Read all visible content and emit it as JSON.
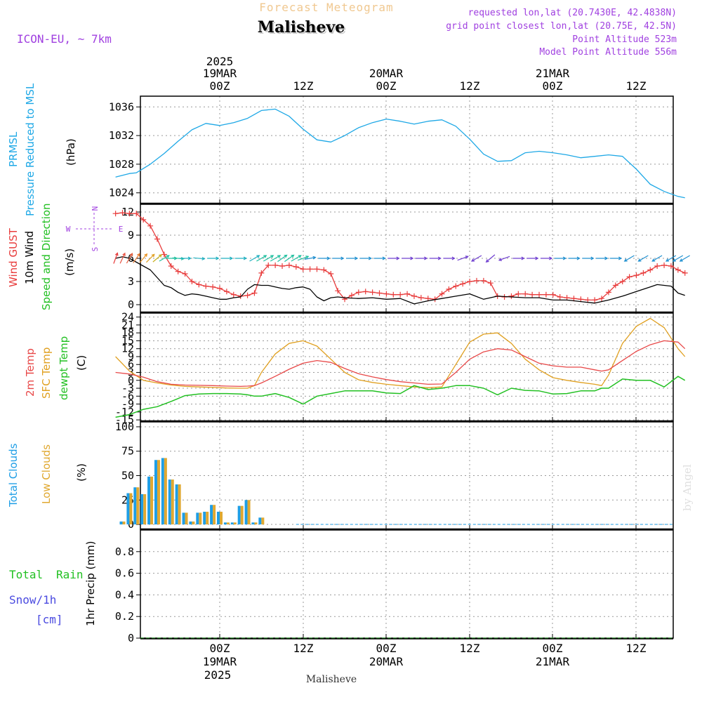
{
  "header": {
    "forecast_title": "Forecast Meteogram",
    "location": "Malisheve",
    "model": "ICON-EU, ~ 7km",
    "requested": "requested lon,lat (20.7430E, 42.4838N)",
    "grid_point": "grid point closest lon,lat (20.75E, 42.5N)",
    "point_altitude": "Point Altitude 523m",
    "model_altitude": "Model Point Altitude 556m",
    "credit": "by Angel"
  },
  "time_axis": {
    "year": "2025",
    "date_labels": [
      "19MAR",
      "20MAR",
      "21MAR"
    ],
    "tick_labels": [
      "00Z",
      "12Z",
      "00Z",
      "12Z",
      "00Z",
      "12Z"
    ],
    "footer_location": "Malisheve"
  },
  "colors": {
    "pressure": "#1ea8e6",
    "gust": "#e83c3c",
    "wind": "#000000",
    "t2m": "#e84848",
    "sfc": "#e0a020",
    "dewpt": "#22c022",
    "total_clouds": "#1e9ee6",
    "low_clouds": "#e0a830",
    "rain": "#22c022",
    "snow": "#4a4ae0",
    "purple": "#a040e0"
  },
  "panel_labels": {
    "pressure": [
      "PRMSL",
      "Pressure Reduced to MSL",
      "(hPa)"
    ],
    "wind": [
      "Wind GUST",
      "10m Wind",
      "Speed and Direction",
      "(m/s)"
    ],
    "compass": {
      "n": "N",
      "s": "S",
      "w": "W",
      "e": "E"
    },
    "temp": [
      "2m Temp",
      "SFC Temp",
      "dewpt Temp",
      "(C)"
    ],
    "clouds": [
      "Total Clouds",
      "Low Clouds",
      "(%)"
    ],
    "precip": [
      "Total",
      "Rain",
      "Snow/1h",
      "[cm]",
      "1hr Precip (mm)"
    ]
  },
  "chart_data": [
    {
      "type": "line",
      "name": "pressure",
      "ylim": [
        1022.5,
        1037.5
      ],
      "yticks": [
        1024,
        1028,
        1032,
        1036
      ],
      "x_hours": [
        -15,
        -13,
        -12,
        -10,
        -8,
        -6,
        -4,
        -2,
        0,
        2,
        4,
        6,
        8,
        10,
        12,
        14,
        16,
        18,
        20,
        22,
        24,
        26,
        28,
        30,
        32,
        34,
        36,
        38,
        40,
        42,
        44,
        46,
        48,
        50,
        52,
        54,
        56,
        58,
        60,
        62,
        64,
        66,
        67
      ],
      "series": [
        {
          "values": [
            1026.2,
            1026.7,
            1026.8,
            1028,
            1029.5,
            1031.2,
            1032.8,
            1033.7,
            1033.4,
            1033.8,
            1034.4,
            1035.5,
            1035.7,
            1034.7,
            1032.9,
            1031.4,
            1031.1,
            1032,
            1033.1,
            1033.8,
            1034.3,
            1034,
            1033.6,
            1034,
            1034.2,
            1033.3,
            1031.5,
            1029.4,
            1028.4,
            1028.5,
            1029.6,
            1029.8,
            1029.6,
            1029.3,
            1028.9,
            1029.1,
            1029.3,
            1029.1,
            1027.3,
            1025.2,
            1024.2,
            1023.5,
            1023.3
          ]
        }
      ]
    },
    {
      "type": "line",
      "name": "wind",
      "ylim": [
        -1,
        13
      ],
      "yticks": [
        0,
        3,
        6,
        9,
        12
      ],
      "gust_x": [
        -15,
        -14,
        -13,
        -12,
        -11,
        -10,
        -9,
        -8,
        -7,
        -6,
        -5,
        -4,
        -3,
        -2,
        -1,
        0,
        1,
        2,
        3,
        4,
        5,
        6,
        7,
        8,
        9,
        10,
        11,
        12,
        13,
        14,
        15,
        16,
        17,
        18,
        19,
        20,
        21,
        22,
        23,
        24,
        25,
        26,
        27,
        28,
        29,
        30,
        31,
        32,
        33,
        34,
        35,
        36,
        37,
        38,
        39,
        40,
        41,
        42,
        43,
        44,
        45,
        46,
        47,
        48,
        49,
        50,
        51,
        52,
        53,
        54,
        55,
        56,
        57,
        58,
        59,
        60,
        61,
        62,
        63,
        64,
        65,
        66,
        67
      ],
      "series": [
        {
          "name": "Wind GUST",
          "values": [
            11.8,
            11.9,
            11.8,
            11.8,
            11.0,
            10.2,
            8.5,
            6.5,
            5.0,
            4.3,
            4.0,
            3.0,
            2.6,
            2.4,
            2.3,
            2.1,
            1.7,
            1.3,
            1.1,
            1.2,
            1.5,
            4.1,
            5.1,
            5.1,
            5.0,
            5.1,
            4.9,
            4.6,
            4.6,
            4.6,
            4.5,
            4.0,
            1.8,
            0.7,
            1.2,
            1.6,
            1.7,
            1.6,
            1.5,
            1.4,
            1.3,
            1.3,
            1.4,
            1.1,
            0.9,
            0.8,
            0.7,
            1.4,
            2.0,
            2.4,
            2.7,
            3.0,
            3.1,
            3.1,
            2.8,
            1.1,
            1.0,
            1.1,
            1.4,
            1.4,
            1.3,
            1.3,
            1.3,
            1.3,
            1.0,
            0.9,
            0.8,
            0.7,
            0.6,
            0.6,
            0.8,
            1.6,
            2.5,
            3.0,
            3.6,
            3.8,
            4.1,
            4.5,
            5.0,
            5.1,
            5.0,
            4.5,
            4.1
          ]
        },
        {
          "name": "10m Wind",
          "x": [
            -15,
            -14,
            -13,
            -12,
            -11,
            -10,
            -9,
            -8,
            -7,
            -6,
            -5,
            -4,
            -3,
            -2,
            -1,
            0,
            1,
            2,
            3,
            4,
            5,
            6,
            7,
            8,
            9,
            10,
            11,
            12,
            13,
            14,
            15,
            16,
            17,
            18,
            20,
            22,
            24,
            26,
            28,
            30,
            32,
            34,
            36,
            38,
            40,
            42,
            44,
            46,
            48,
            50,
            52,
            54,
            56,
            58,
            60,
            61,
            62,
            63,
            64,
            65,
            66,
            67
          ],
          "values": [
            6.0,
            6.2,
            6.0,
            5.5,
            5.0,
            4.5,
            3.5,
            2.5,
            2.2,
            1.6,
            1.2,
            1.4,
            1.3,
            1.1,
            0.9,
            0.7,
            0.7,
            0.9,
            1.0,
            2.0,
            2.6,
            2.5,
            2.5,
            2.3,
            2.1,
            2.0,
            2.2,
            2.3,
            2.0,
            1.0,
            0.5,
            0.9,
            1.0,
            0.9,
            0.8,
            0.9,
            0.7,
            0.8,
            0.1,
            0.5,
            0.8,
            1.1,
            1.4,
            0.7,
            1.1,
            1.0,
            0.9,
            0.9,
            0.6,
            0.6,
            0.4,
            0.2,
            0.6,
            1.1,
            1.7,
            2.0,
            2.3,
            2.6,
            2.5,
            2.4,
            1.5,
            1.2
          ]
        }
      ]
    },
    {
      "type": "line",
      "name": "temperature",
      "ylim": [
        -15.5,
        25.5
      ],
      "yticks": [
        -15,
        -12,
        -9,
        -6,
        -3,
        0,
        3,
        6,
        9,
        12,
        15,
        18,
        21,
        24
      ],
      "x": [
        -15,
        -13,
        -11,
        -9,
        -7,
        -5,
        -3,
        -1,
        1,
        3,
        4,
        5,
        6,
        8,
        10,
        12,
        14,
        16,
        18,
        20,
        22,
        24,
        26,
        28,
        30,
        32,
        34,
        36,
        38,
        40,
        42,
        44,
        46,
        48,
        50,
        52,
        54,
        55,
        56,
        58,
        60,
        62,
        64,
        66,
        67
      ],
      "series": [
        {
          "name": "2m Temp",
          "values": [
            3.0,
            2.4,
            1.2,
            -0.5,
            -1.5,
            -1.8,
            -1.9,
            -2.0,
            -2.2,
            -2.3,
            -2.2,
            -2.0,
            -1.0,
            1.5,
            4.2,
            6.5,
            7.5,
            6.8,
            4.5,
            2.5,
            1.3,
            0.3,
            -0.5,
            -1.0,
            -1.5,
            -1.4,
            3.0,
            8.0,
            10.8,
            12.0,
            11.5,
            9.0,
            6.5,
            5.5,
            5.0,
            5.0,
            4.0,
            3.5,
            4.0,
            7.5,
            11.0,
            13.5,
            15.0,
            14.5,
            12.0
          ]
        },
        {
          "name": "SFC Temp",
          "values": [
            9.0,
            3.5,
            0.0,
            -1.0,
            -1.8,
            -2.3,
            -2.5,
            -2.7,
            -2.9,
            -3.0,
            -3.0,
            -2.0,
            3.0,
            10.0,
            14.0,
            15.0,
            13.0,
            8.0,
            3.0,
            0.2,
            -0.8,
            -1.5,
            -2.0,
            -2.5,
            -2.8,
            -2.5,
            6.0,
            14.5,
            17.5,
            18.0,
            14.0,
            8.0,
            4.0,
            1.0,
            0.0,
            -0.8,
            -1.5,
            -2.0,
            2.0,
            14.0,
            20.5,
            23.5,
            20.0,
            12.0,
            9.0
          ]
        },
        {
          "name": "dewpt Temp",
          "values": [
            -14.0,
            -13.0,
            -11.0,
            -10.0,
            -8.0,
            -5.8,
            -5.2,
            -5.0,
            -5.0,
            -5.2,
            -5.5,
            -6.0,
            -6.0,
            -5.0,
            -6.5,
            -9.0,
            -6.0,
            -5.0,
            -4.0,
            -4.0,
            -4.0,
            -4.8,
            -5.0,
            -2.0,
            -3.5,
            -3.0,
            -2.0,
            -2.0,
            -3.0,
            -5.5,
            -3.0,
            -3.8,
            -4.0,
            -5.2,
            -5.0,
            -4.0,
            -4.0,
            -3.0,
            -3.0,
            0.5,
            0.0,
            0.0,
            -2.5,
            1.5,
            0.0
          ]
        }
      ]
    },
    {
      "type": "bar",
      "name": "clouds",
      "ylim": [
        -5,
        105
      ],
      "yticks": [
        0,
        25,
        50,
        75,
        100
      ],
      "x": [
        -14,
        -13,
        -12,
        -11,
        -10,
        -9,
        -8,
        -7,
        -6,
        -5,
        -4,
        -3,
        -2,
        -1,
        0,
        1,
        2,
        3,
        4,
        5,
        6,
        7,
        8,
        9,
        10,
        11
      ],
      "series": [
        {
          "name": "Total Clouds",
          "values": [
            3,
            32,
            38,
            31,
            49,
            66,
            68,
            46,
            41,
            12,
            3,
            12,
            13,
            20,
            13,
            2,
            2,
            19,
            25,
            2,
            7,
            0,
            0,
            0,
            0,
            0
          ]
        },
        {
          "name": "Low Clouds",
          "values": [
            3,
            32,
            38,
            31,
            49,
            66,
            68,
            46,
            41,
            12,
            3,
            12,
            13,
            20,
            13,
            2,
            2,
            19,
            25,
            2,
            7,
            0,
            0,
            0,
            0,
            0
          ]
        }
      ]
    },
    {
      "type": "line",
      "name": "precip",
      "ylim": [
        0,
        1.0
      ],
      "yticks": [
        0,
        0.2,
        0.4,
        0.6,
        0.8
      ],
      "series": [
        {
          "name": "Total Rain",
          "values": [
            0,
            0,
            0,
            0,
            0,
            0,
            0,
            0,
            0,
            0,
            0,
            0,
            0,
            0,
            0,
            0,
            0,
            0,
            0,
            0,
            0,
            0,
            0,
            0,
            0,
            0,
            0,
            0,
            0,
            0,
            0,
            0,
            0,
            0,
            0,
            0,
            0,
            0,
            0,
            0,
            0,
            0,
            0,
            0,
            0,
            0,
            0,
            0,
            0,
            0,
            0,
            0,
            0,
            0,
            0,
            0,
            0,
            0,
            0,
            0,
            0,
            0,
            0,
            0,
            0,
            0,
            0,
            0,
            0,
            0,
            0,
            0,
            0,
            0,
            0,
            0,
            0,
            0,
            0,
            0,
            0,
            0
          ]
        }
      ]
    }
  ],
  "wind_arrows": {
    "x_hours": [
      -15,
      -14,
      -13,
      -12,
      -11,
      -10,
      -9,
      -8,
      -7,
      -6,
      -5,
      -3,
      -1,
      1,
      3,
      5,
      6,
      7,
      8,
      9,
      10,
      11,
      12,
      13,
      15,
      17,
      19,
      21,
      23,
      25,
      27,
      29,
      31,
      33,
      35,
      37,
      39,
      41,
      43,
      45,
      47,
      49,
      51,
      53,
      55,
      57,
      59,
      61,
      63,
      65,
      66,
      67
    ],
    "dir_deg": [
      20,
      25,
      30,
      35,
      40,
      45,
      50,
      60,
      90,
      95,
      90,
      95,
      90,
      90,
      90,
      60,
      60,
      60,
      60,
      55,
      55,
      60,
      70,
      80,
      90,
      90,
      90,
      90,
      90,
      90,
      90,
      90,
      90,
      90,
      70,
      240,
      230,
      250,
      90,
      90,
      90,
      90,
      90,
      90,
      90,
      90,
      240,
      240,
      240,
      240,
      240,
      240
    ]
  }
}
